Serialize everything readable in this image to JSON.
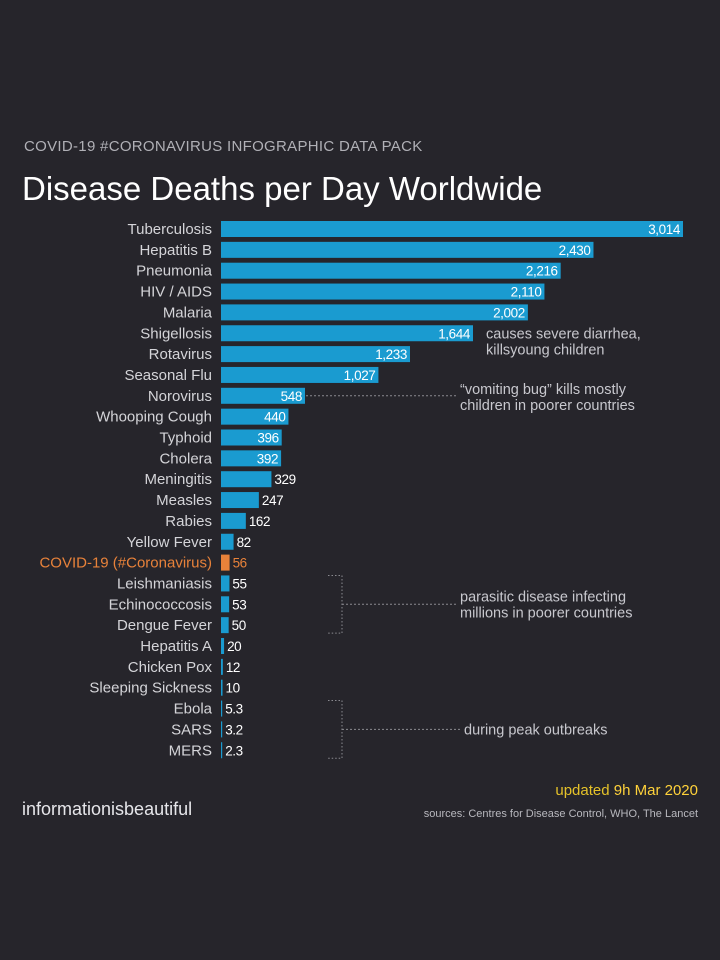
{
  "colors": {
    "background": "#26252b",
    "bar": "#1a9bd0",
    "bar_highlight": "#e8823a",
    "label": "#d4d4d8",
    "label_highlight": "#e8823a",
    "title": "#ffffff",
    "subtitle": "#b0b0b6",
    "updated_accent": "#e5c229",
    "annotation_line": "#8a8a90"
  },
  "header": {
    "pack_title": "COVID-19 #CORONAVIRUS INFOGRAPHIC DATA PACK",
    "title": "Disease Deaths per Day Worldwide"
  },
  "footer": {
    "brand": "informationisbeautiful",
    "updated_prefix": "updated ",
    "updated_date": "9h Mar 2020",
    "sources": "sources: Centres for Disease Control, WHO, The Lancet"
  },
  "chart_data": {
    "type": "bar",
    "orientation": "horizontal",
    "title": "Disease Deaths per Day Worldwide",
    "categories": [
      "Tuberculosis",
      "Hepatitis B",
      "Pneumonia",
      "HIV / AIDS",
      "Malaria",
      "Shigellosis",
      "Rotavirus",
      "Seasonal Flu",
      "Norovirus",
      "Whooping Cough",
      "Typhoid",
      "Cholera",
      "Meningitis",
      "Measles",
      "Rabies",
      "Yellow Fever",
      "COVID-19 (#Coronavirus)",
      "Leishmaniasis",
      "Echinococcosis",
      "Dengue Fever",
      "Hepatitis A",
      "Chicken Pox",
      "Sleeping Sickness",
      "Ebola",
      "SARS",
      "MERS"
    ],
    "values": [
      3014,
      2430,
      2216,
      2110,
      2002,
      1644,
      1233,
      1027,
      548,
      440,
      396,
      392,
      329,
      247,
      162,
      82,
      56,
      55,
      53,
      50,
      20,
      12,
      10,
      5.3,
      3.2,
      2.3
    ],
    "value_labels": [
      "3,014",
      "2,430",
      "2,216",
      "2,110",
      "2,002",
      "1,644",
      "1,233",
      "1,027",
      "548",
      "440",
      "396",
      "392",
      "329",
      "247",
      "162",
      "82",
      "56",
      "55",
      "53",
      "50",
      "20",
      "12",
      "10",
      "5.3",
      "3.2",
      "2.3"
    ],
    "highlight": "COVID-19 (#Coronavirus)",
    "xlim": [
      0,
      3014
    ],
    "grid": false,
    "annotations": [
      {
        "text": [
          "causes severe diarrhea,",
          "killsyoung children"
        ],
        "target": "Shigellosis"
      },
      {
        "text": [
          "“vomiting bug” kills mostly",
          "children in poorer countries"
        ],
        "target": "Norovirus"
      },
      {
        "text": [
          "parasitic disease infecting",
          "millions in poorer countries"
        ],
        "target": [
          "Leishmaniasis",
          "Dengue Fever"
        ]
      },
      {
        "text": [
          "during peak outbreaks"
        ],
        "target": [
          "Ebola",
          "MERS"
        ]
      }
    ]
  }
}
